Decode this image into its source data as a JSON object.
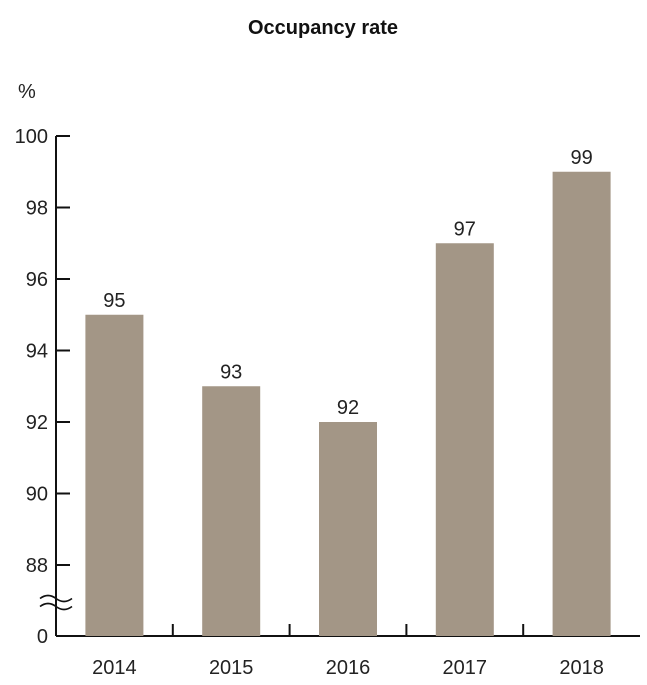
{
  "chart_data": {
    "type": "bar",
    "title": "Occupancy rate",
    "ylabel": "%",
    "xlabel": "",
    "categories": [
      "2014",
      "2015",
      "2016",
      "2017",
      "2018"
    ],
    "values": [
      95,
      93,
      92,
      97,
      99
    ],
    "data_labels": [
      "95",
      "93",
      "92",
      "97",
      "99"
    ],
    "y_ticks": [
      0,
      88,
      90,
      92,
      94,
      96,
      98,
      100
    ],
    "y_tick_labels": [
      "0",
      "88",
      "90",
      "92",
      "94",
      "96",
      "98",
      "100"
    ],
    "axis_break": {
      "between": [
        0,
        88
      ]
    },
    "ylim": [
      0,
      100
    ],
    "bar_color": "#a39686",
    "grid": false,
    "legend": "none"
  }
}
